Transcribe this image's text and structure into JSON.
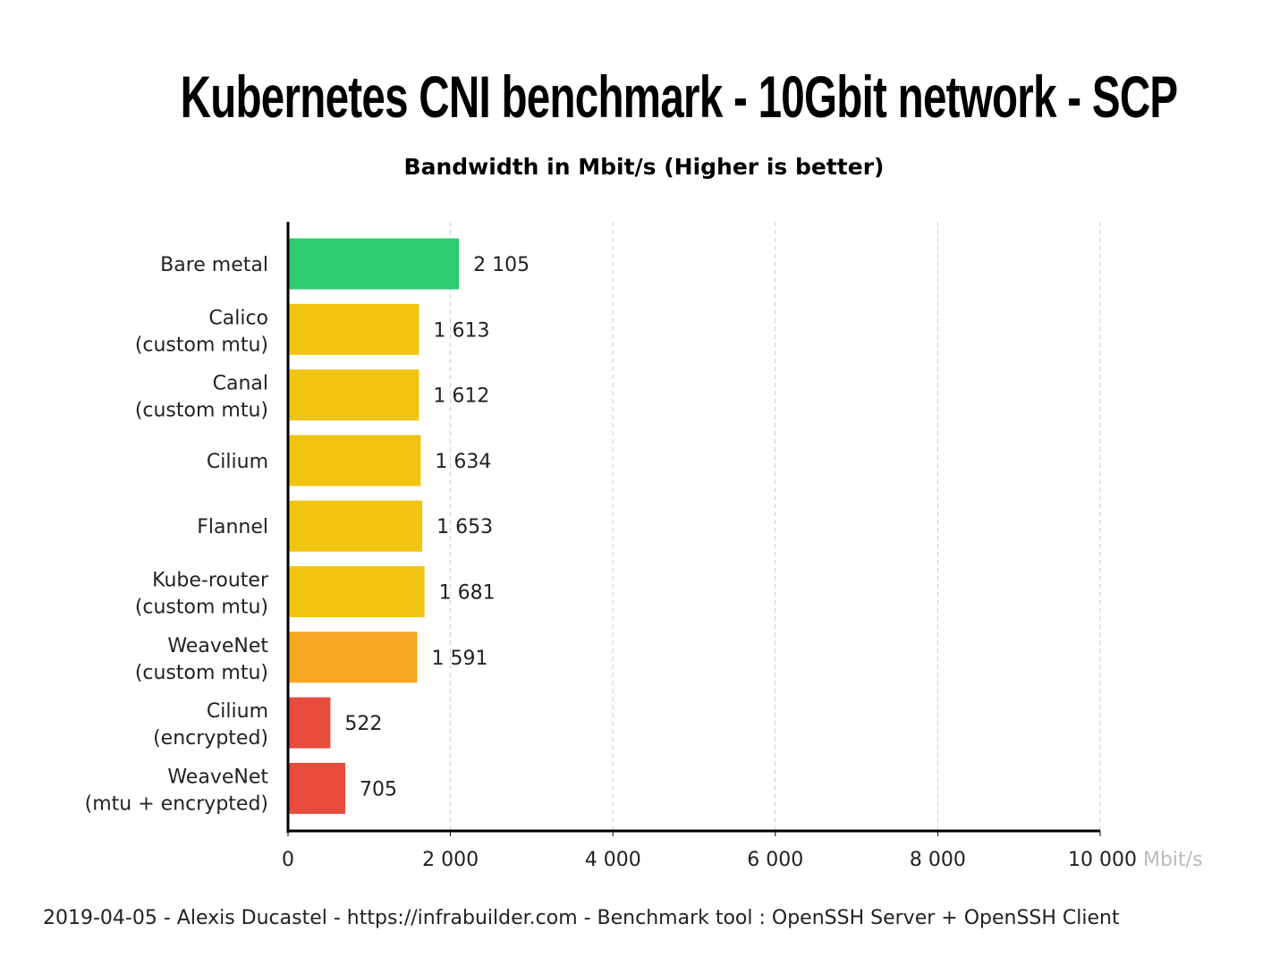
{
  "chart_data": {
    "type": "bar",
    "orientation": "horizontal",
    "title": "Kubernetes CNI benchmark - 10Gbit network - SCP",
    "subtitle": "Bandwidth in Mbit/s (Higher is better)",
    "categories": [
      [
        "Bare metal"
      ],
      [
        "Calico",
        "(custom mtu)"
      ],
      [
        "Canal",
        "(custom mtu)"
      ],
      [
        "Cilium"
      ],
      [
        "Flannel"
      ],
      [
        "Kube-router",
        "(custom mtu)"
      ],
      [
        "WeaveNet",
        "(custom mtu)"
      ],
      [
        "Cilium",
        "(encrypted)"
      ],
      [
        "WeaveNet",
        "(mtu + encrypted)"
      ]
    ],
    "values": [
      2105,
      1613,
      1612,
      1634,
      1653,
      1681,
      1591,
      522,
      705
    ],
    "colors": [
      "#2ecc71",
      "#f1c40f",
      "#f1c40f",
      "#f1c40f",
      "#f1c40f",
      "#f1c40f",
      "#f5a623",
      "#e74c3c",
      "#e74c3c"
    ],
    "xlim": [
      0,
      10000
    ],
    "xticks": [
      0,
      2000,
      4000,
      6000,
      8000,
      10000
    ],
    "xunit": "Mbit/s",
    "grid": "vertical dashed",
    "legend": "none"
  },
  "footer": "2019-04-05 - Alexis Ducastel - https://infrabuilder.com - Benchmark tool : OpenSSH Server + OpenSSH Client"
}
